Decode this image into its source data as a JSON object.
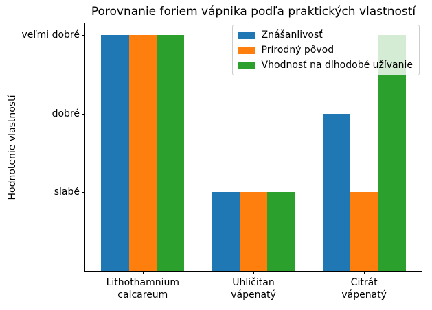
{
  "chart_data": {
    "type": "bar",
    "title": "Porovnanie foriem vápnika podľa praktických vlastností",
    "xlabel": "",
    "ylabel": "Hodnotenie vlastností",
    "categories": [
      "Lithothamnium\ncalcareum",
      "Uhličitan\nvápenatý",
      "Citrát\nvápenatý"
    ],
    "yticks": [
      {
        "value": 1,
        "label": "slabé"
      },
      {
        "value": 2,
        "label": "dobré"
      },
      {
        "value": 3,
        "label": "veľmi dobré"
      }
    ],
    "ylim": [
      0,
      3.15
    ],
    "grid": false,
    "legend_position": "upper right",
    "background_color": "#ffffff",
    "series": [
      {
        "name": "Znášanlivosť",
        "color": "#1f77b4",
        "values": [
          3,
          1,
          2
        ]
      },
      {
        "name": "Prírodný pôvod",
        "color": "#ff7f0e",
        "values": [
          3,
          1,
          1
        ]
      },
      {
        "name": "Vhodnosť na dlhodobé užívanie",
        "color": "#2ca02c",
        "values": [
          3,
          1,
          3
        ]
      }
    ]
  }
}
